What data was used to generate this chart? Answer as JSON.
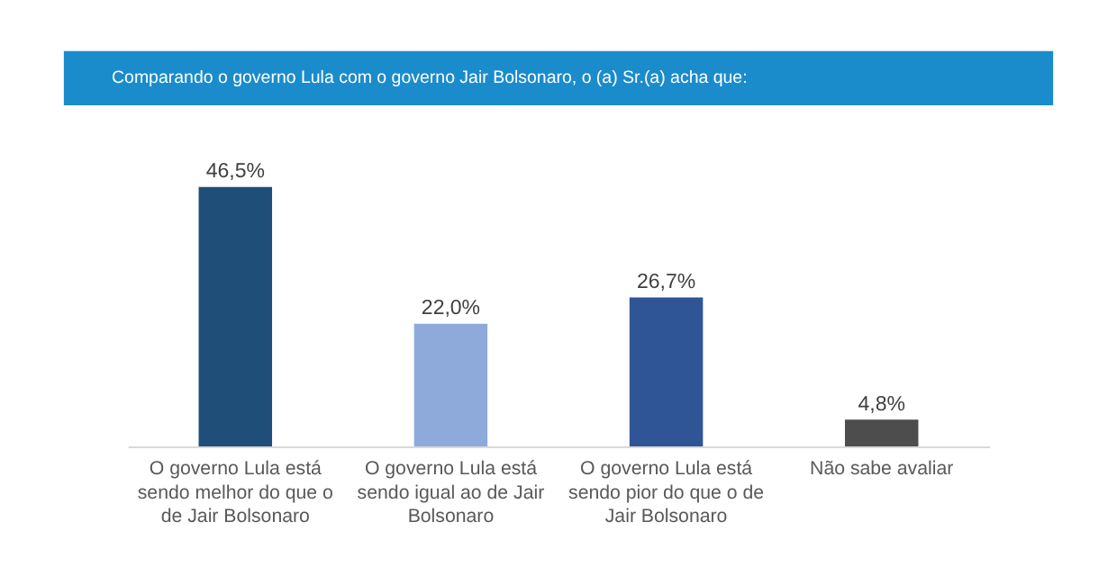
{
  "chart_data": {
    "type": "bar",
    "title": "Comparando o governo Lula com o governo Jair Bolsonaro, o (a) Sr.(a) acha que:",
    "categories": [
      "O governo Lula está sendo melhor do que o de Jair Bolsonaro",
      "O governo Lula está sendo igual ao de Jair Bolsonaro",
      "O governo Lula está sendo pior do que o de Jair Bolsonaro",
      "Não sabe avaliar"
    ],
    "values": [
      46.5,
      22.0,
      26.7,
      4.8
    ],
    "colors": [
      "#1f4e79",
      "#8eaadb",
      "#2f5597",
      "#4d4d4d"
    ],
    "value_labels": [
      "46,5%",
      "22,0%",
      "26,7%",
      "4,8%"
    ],
    "grid": false,
    "tick_labels": "x"
  }
}
